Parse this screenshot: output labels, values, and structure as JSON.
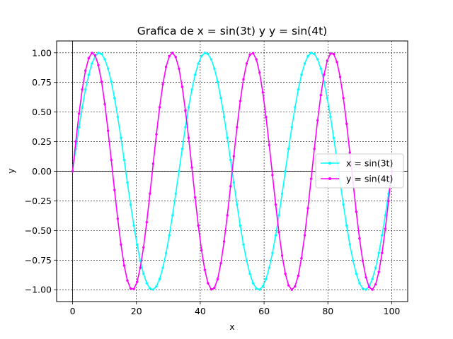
{
  "chart_data": {
    "type": "line",
    "title": "Grafica de x = sin(3t) y y = sin(4t)",
    "xlabel": "x",
    "ylabel": "y",
    "xlim": [
      -5,
      105
    ],
    "ylim": [
      -1.1,
      1.1
    ],
    "xticks": [
      0,
      20,
      40,
      60,
      80,
      100
    ],
    "xtick_labels": [
      "0",
      "20",
      "40",
      "60",
      "80",
      "100"
    ],
    "yticks": [
      -1.0,
      -0.75,
      -0.5,
      -0.25,
      0.0,
      0.25,
      0.5,
      0.75,
      1.0
    ],
    "ytick_labels": [
      "−1.00",
      "−0.75",
      "−0.50",
      "−0.25",
      "0.00",
      "0.25",
      "0.50",
      "0.75",
      "1.00"
    ],
    "grid": true,
    "grid_style": "dotted",
    "legend_position": "center-right",
    "sample_count": 100,
    "series": [
      {
        "name": "x = sin(3t)",
        "color": "#00ffff",
        "formula": "sin(3t)",
        "frequency": 3
      },
      {
        "name": "y = sin(4t)",
        "color": "#ff00ff",
        "formula": "sin(4t)",
        "frequency": 4
      }
    ],
    "x_range": [
      0,
      100
    ]
  }
}
